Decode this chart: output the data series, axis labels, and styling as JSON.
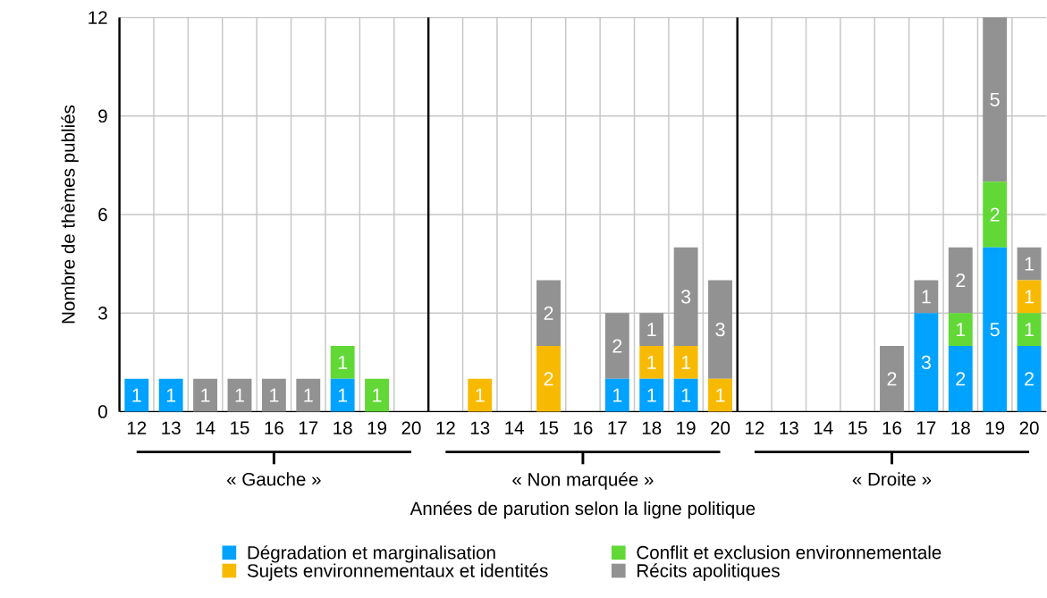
{
  "chart_data": {
    "type": "bar",
    "stacked": true,
    "xlabel": "Années de parution selon la ligne politique",
    "ylabel": "Nombre de thèmes publiés",
    "categories": [
      "12",
      "13",
      "14",
      "15",
      "16",
      "17",
      "18",
      "19",
      "20",
      "12",
      "13",
      "14",
      "15",
      "16",
      "17",
      "18",
      "19",
      "20",
      "12",
      "13",
      "14",
      "15",
      "16",
      "17",
      "18",
      "19",
      "20"
    ],
    "series": [
      {
        "name": "Dégradation et marginalisation",
        "color": "#00a2ff",
        "values": [
          1,
          1,
          null,
          null,
          null,
          null,
          1,
          null,
          null,
          null,
          null,
          null,
          null,
          null,
          1,
          1,
          1,
          null,
          null,
          null,
          null,
          null,
          null,
          3,
          2,
          5,
          2
        ]
      },
      {
        "name": "Conflit et exclusion environnementale",
        "color": "#61d836",
        "values": [
          null,
          null,
          null,
          null,
          null,
          null,
          1,
          1,
          null,
          null,
          null,
          null,
          null,
          null,
          null,
          null,
          null,
          null,
          null,
          null,
          null,
          null,
          null,
          null,
          1,
          2,
          1
        ]
      },
      {
        "name": "Sujets environnementaux et identités",
        "color": "#f8ba00",
        "values": [
          null,
          null,
          null,
          null,
          null,
          null,
          null,
          null,
          null,
          null,
          1,
          null,
          2,
          null,
          null,
          1,
          1,
          1,
          null,
          null,
          null,
          null,
          null,
          null,
          null,
          null,
          1
        ]
      },
      {
        "name": "Récits apolitiques",
        "color": "#929292",
        "values": [
          null,
          null,
          1,
          1,
          1,
          1,
          null,
          null,
          null,
          null,
          null,
          null,
          2,
          null,
          2,
          1,
          3,
          3,
          null,
          null,
          null,
          null,
          2,
          1,
          2,
          5,
          1
        ]
      }
    ],
    "annotations": [
      "« Gauche »",
      "« Non marquée »",
      "« Droite »"
    ],
    "ylim": [
      0,
      12
    ],
    "yticks": [
      0,
      3,
      6,
      9,
      12
    ],
    "grid": true,
    "legend": "bottom",
    "data_labels": true
  }
}
